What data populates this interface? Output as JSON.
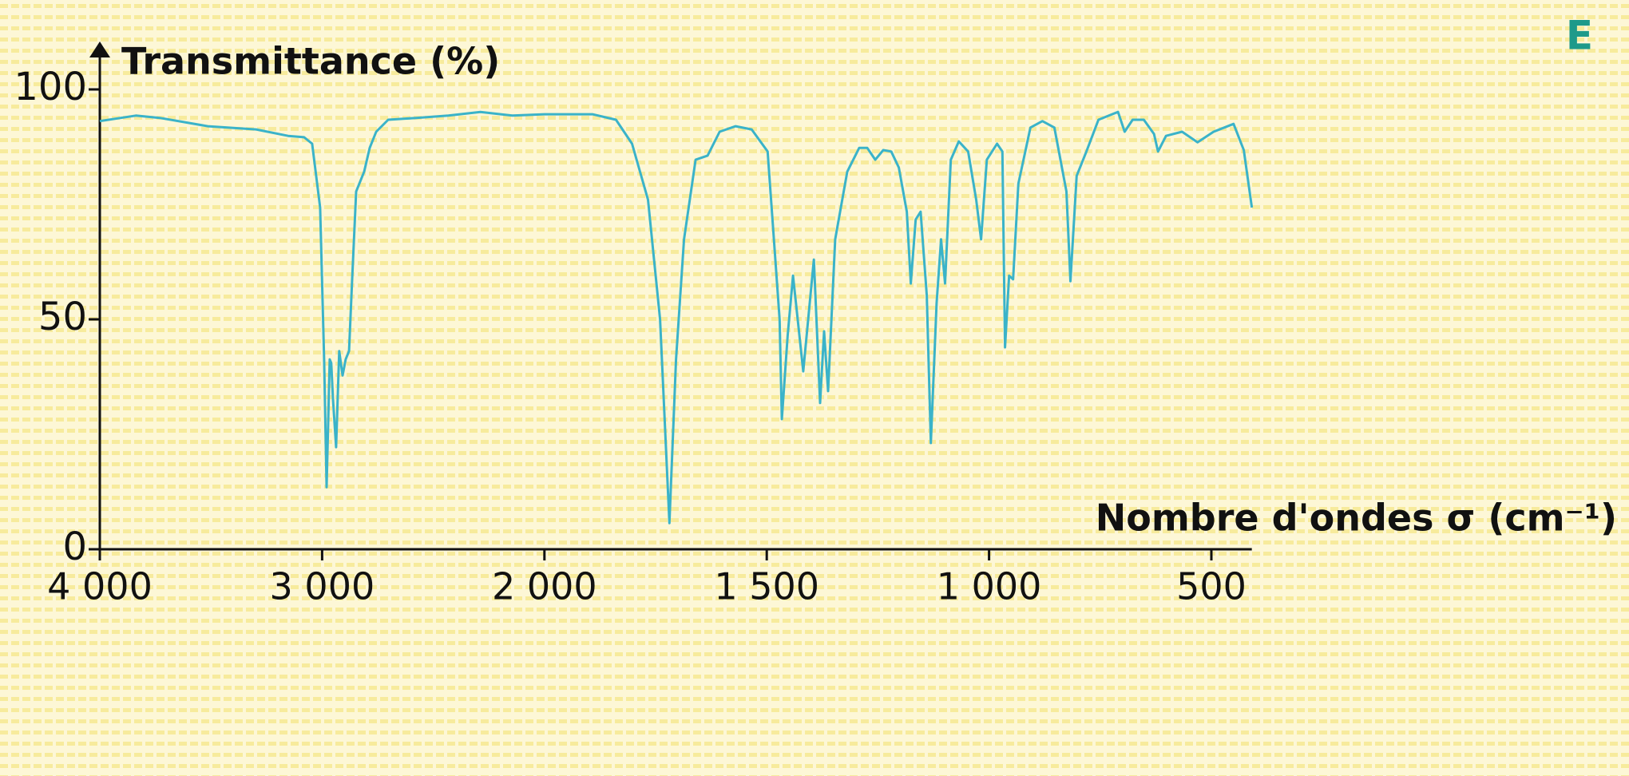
{
  "chart_data": {
    "type": "line",
    "ylabel": "Transmittance (%)",
    "xlabel": "Nombre d'ondes σ (cm⁻¹)",
    "annotation": "E",
    "color": "#3ab3c9",
    "x": [
      4000,
      3838,
      3730,
      3514,
      3297,
      3153,
      3081,
      3045,
      3009,
      2991,
      2980,
      2966,
      2959,
      2951,
      2937,
      2923,
      2908,
      2894,
      2879,
      2865,
      2847,
      2811,
      2786,
      2757,
      2703,
      2577,
      2432,
      2288,
      2144,
      2000,
      1892,
      1839,
      1803,
      1767,
      1740,
      1719,
      1704,
      1686,
      1660,
      1633,
      1606,
      1570,
      1534,
      1498,
      1471,
      1466,
      1453,
      1441,
      1418,
      1394,
      1380,
      1371,
      1362,
      1346,
      1319,
      1292,
      1274,
      1256,
      1238,
      1220,
      1203,
      1185,
      1176,
      1165,
      1154,
      1140,
      1131,
      1118,
      1108,
      1099,
      1086,
      1068,
      1047,
      1029,
      1018,
      1005,
      982,
      970,
      964,
      955,
      946,
      934,
      907,
      880,
      853,
      826,
      817,
      803,
      781,
      754,
      710,
      695,
      677,
      652,
      629,
      620,
      602,
      566,
      531,
      495,
      450,
      427,
      409
    ],
    "values": [
      93.1,
      94.3,
      93.8,
      92.0,
      91.3,
      89.9,
      89.6,
      88.2,
      74.3,
      41.3,
      13.5,
      41.3,
      40.5,
      32.6,
      22.2,
      43.1,
      37.8,
      41.3,
      43.1,
      58.7,
      77.8,
      82.1,
      87.3,
      90.8,
      93.4,
      93.8,
      94.3,
      95.1,
      94.3,
      94.6,
      94.6,
      93.4,
      88.2,
      76.0,
      50.0,
      5.7,
      41.3,
      67.4,
      84.7,
      85.6,
      90.8,
      92.0,
      91.3,
      86.5,
      50.0,
      28.3,
      46.5,
      59.5,
      38.7,
      63.0,
      31.8,
      47.4,
      34.4,
      67.4,
      82.1,
      87.3,
      87.3,
      84.7,
      86.8,
      86.5,
      83.0,
      73.4,
      57.8,
      71.7,
      73.4,
      55.2,
      23.1,
      53.5,
      67.4,
      57.8,
      84.7,
      88.7,
      86.5,
      76.0,
      67.4,
      84.7,
      88.2,
      86.5,
      43.9,
      59.5,
      58.7,
      79.5,
      91.7,
      93.1,
      91.7,
      77.8,
      58.3,
      81.2,
      86.5,
      93.4,
      95.1,
      90.8,
      93.4,
      93.4,
      90.3,
      86.5,
      89.9,
      90.8,
      88.5,
      90.8,
      92.5,
      86.8,
      74.3
    ],
    "xlim": [
      4000,
      409
    ],
    "xticks": [
      {
        "value": 4000,
        "label": "4 000"
      },
      {
        "value": 3000,
        "label": "3 000"
      },
      {
        "value": 2000,
        "label": "2 000"
      },
      {
        "value": 1500,
        "label": "1 500"
      },
      {
        "value": 1000,
        "label": "1 000"
      },
      500
    ],
    "ylim": [
      0,
      109
    ],
    "yticks": [
      0,
      50,
      100
    ]
  }
}
